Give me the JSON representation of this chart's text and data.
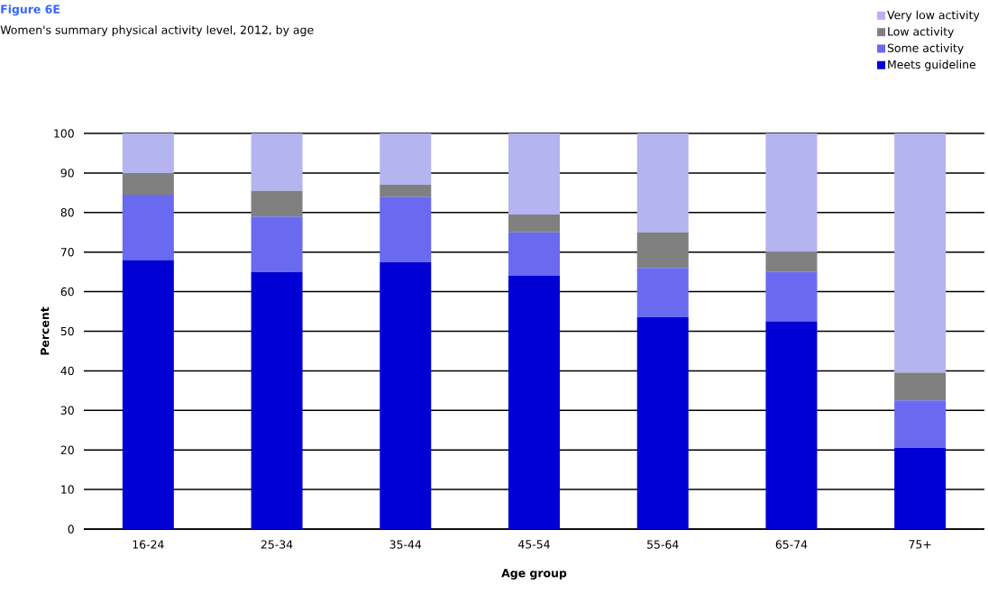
{
  "chart_data": {
    "type": "bar",
    "title": "Figure 6E",
    "subtitle": "Women's summary physical activity level, 2012, by age",
    "xlabel": "Age group",
    "ylabel": "Percent",
    "categories": [
      "16-24",
      "25-34",
      "35-44",
      "45-54",
      "55-64",
      "65-74",
      "75+"
    ],
    "stacked": true,
    "ylim": [
      0,
      100
    ],
    "yticks": [
      0,
      10,
      20,
      30,
      40,
      50,
      60,
      70,
      80,
      90,
      100
    ],
    "grid": "y",
    "legend": "top right",
    "series": [
      {
        "name": "Meets guideline",
        "color": "#0000d4",
        "values": [
          68,
          65,
          67.5,
          64,
          53.5,
          52.5,
          20.5
        ]
      },
      {
        "name": "Some activity",
        "color": "#6a6af0",
        "values": [
          16.5,
          14,
          16.5,
          11,
          12.5,
          12.5,
          12
        ]
      },
      {
        "name": "Low activity",
        "color": "#808080",
        "values": [
          5.5,
          6.5,
          3,
          4.5,
          9,
          5,
          7
        ]
      },
      {
        "name": "Very low activity",
        "color": "#b4b4f0",
        "values": [
          10,
          14.5,
          13,
          20.5,
          25,
          30,
          60.5
        ]
      }
    ]
  }
}
